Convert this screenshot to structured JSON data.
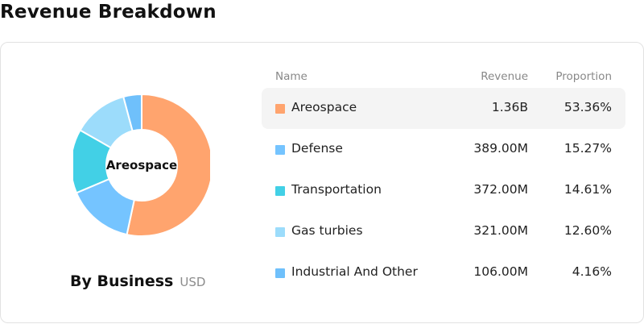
{
  "title": "Revenue Breakdown",
  "donut": {
    "center_label": "Areospace"
  },
  "footer": {
    "label": "By Business",
    "unit": "USD"
  },
  "table": {
    "headers": {
      "name": "Name",
      "revenue": "Revenue",
      "proportion": "Proportion"
    },
    "rows": [
      {
        "name": "Areospace",
        "revenue": "1.36B",
        "proportion": "53.36%",
        "color": "#FFA46E",
        "active": true
      },
      {
        "name": "Defense",
        "revenue": "389.00M",
        "proportion": "15.27%",
        "color": "#75C4FF",
        "active": false
      },
      {
        "name": "Transportation",
        "revenue": "372.00M",
        "proportion": "14.61%",
        "color": "#42D0E6",
        "active": false
      },
      {
        "name": "Gas turbies",
        "revenue": "321.00M",
        "proportion": "12.60%",
        "color": "#9CDCFB",
        "active": false
      },
      {
        "name": "Industrial And Other",
        "revenue": "106.00M",
        "proportion": "4.16%",
        "color": "#6FC0FB",
        "active": false
      }
    ]
  },
  "chart_data": {
    "type": "pie",
    "categories": [
      "Areospace",
      "Defense",
      "Transportation",
      "Gas turbies",
      "Industrial And Other"
    ],
    "values": [
      53.36,
      15.27,
      14.61,
      12.6,
      4.16
    ],
    "colors": [
      "#FFA46E",
      "#75C4FF",
      "#42D0E6",
      "#9CDCFB",
      "#6FC0FB"
    ]
  }
}
